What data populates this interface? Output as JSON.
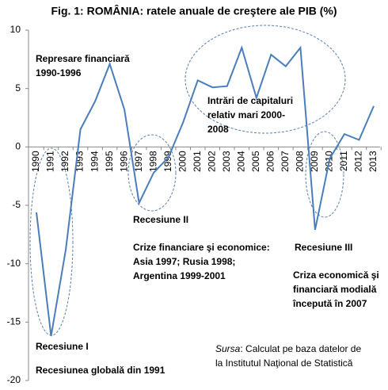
{
  "chart_data": {
    "type": "line",
    "title": "Fig. 1: ROMÂNIA: ratele anuale de creştere ale PIB (%)",
    "categories": [
      "1990",
      "1991",
      "1992",
      "1993",
      "1994",
      "1995",
      "1996",
      "1997",
      "1998",
      "1999",
      "2000",
      "2001",
      "2002",
      "2003",
      "2004",
      "2005",
      "2006",
      "2007",
      "2008",
      "2009",
      "2010",
      "2011",
      "2012",
      "2013"
    ],
    "series": [
      {
        "name": "PIB",
        "color": "#4a7ebb",
        "values": [
          -5.6,
          -16.2,
          -8.8,
          1.5,
          3.9,
          7.1,
          3.2,
          -4.8,
          -2.2,
          -0.9,
          2.1,
          5.7,
          5.1,
          5.2,
          8.5,
          4.2,
          7.9,
          6.9,
          8.5,
          -7.1,
          -1.0,
          1.1,
          0.6,
          3.5
        ]
      }
    ],
    "ylim": [
      -20,
      10
    ],
    "yticks": [
      -20,
      -15,
      -10,
      -5,
      0,
      5,
      10
    ],
    "annotations": [
      {
        "lines": [
          "Represare financiară",
          "1990-1996"
        ]
      },
      {
        "lines": [
          "Intrări de capitaluri",
          "relativ mari 2000-",
          "2008"
        ]
      },
      {
        "lines": [
          "Recesiune II"
        ]
      },
      {
        "lines": [
          "Crize financiare şi economice:",
          "Asia 1997; Rusia 1998;",
          "Argentina 1999-2001"
        ]
      },
      {
        "lines": [
          "Recesiune III"
        ]
      },
      {
        "lines": [
          "Criza economică şi",
          "financiară modială",
          "începută în 2007"
        ]
      },
      {
        "lines": [
          "Recesiune I"
        ]
      },
      {
        "lines": [
          "Recesiunea globală din 1991"
        ]
      }
    ],
    "source": {
      "label": "Sursa",
      "text": ": Calculat pe baza datelor de",
      "line2": "la Institutul Naţional de Statistică"
    }
  }
}
